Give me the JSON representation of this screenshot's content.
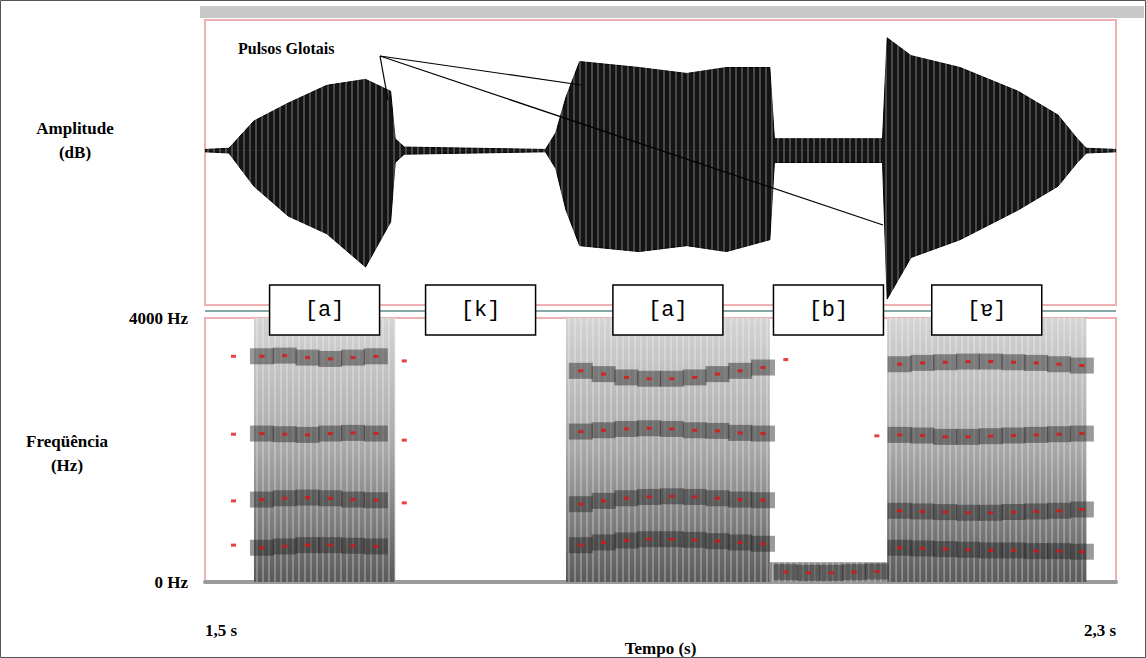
{
  "chart_data": {
    "type": "waveform_spectrogram",
    "annotation": "Pulsos Glotais",
    "x_label": "Tempo (s)",
    "xlim": [
      1.5,
      2.3
    ],
    "xticks": [
      {
        "value": 1.5,
        "label": "1,5 s"
      },
      {
        "value": 2.3,
        "label": "2,3 s"
      }
    ],
    "segments": [
      {
        "label": "[a]",
        "start": 1.543,
        "end": 1.667
      },
      {
        "label": "[k]",
        "start": 1.667,
        "end": 1.817
      },
      {
        "label": "[a]",
        "start": 1.817,
        "end": 1.996
      },
      {
        "label": "[b]",
        "start": 1.996,
        "end": 2.099
      },
      {
        "label": "[ɐ]",
        "start": 2.099,
        "end": 2.274
      }
    ],
    "waveform": {
      "y_label": "Amplitude (dB)",
      "ylim": [
        -1.3,
        1.1
      ],
      "color": "#000000",
      "t": [
        1.5,
        1.521,
        1.543,
        1.573,
        1.607,
        1.641,
        1.663,
        1.667,
        1.675,
        1.799,
        1.808,
        1.817,
        1.829,
        1.881,
        1.923,
        1.958,
        1.996,
        2.0,
        2.095,
        2.099,
        2.12,
        2.163,
        2.214,
        2.249,
        2.266,
        2.274,
        2.3
      ],
      "max": [
        0.01,
        0.02,
        0.25,
        0.4,
        0.55,
        0.6,
        0.5,
        0.1,
        0.03,
        0.01,
        0.15,
        0.45,
        0.75,
        0.7,
        0.65,
        0.7,
        0.7,
        0.1,
        0.1,
        0.95,
        0.8,
        0.7,
        0.5,
        0.3,
        0.1,
        0.02,
        0.01
      ],
      "min": [
        -0.01,
        -0.02,
        -0.3,
        -0.55,
        -0.7,
        -0.98,
        -0.6,
        -0.1,
        -0.03,
        -0.01,
        -0.15,
        -0.5,
        -0.8,
        -0.85,
        -0.8,
        -0.85,
        -0.75,
        -0.1,
        -0.1,
        -1.25,
        -0.9,
        -0.75,
        -0.5,
        -0.3,
        -0.1,
        -0.02,
        -0.01
      ]
    },
    "spectrogram": {
      "y_label": "Freqüência (Hz)",
      "ylim": [
        0,
        4000
      ],
      "yticks": [
        {
          "value": 0,
          "label": "0 Hz"
        },
        {
          "value": 4000,
          "label": "4000 Hz"
        }
      ],
      "dark_regions": [
        [
          1.543,
          1.667,
          0,
          4000
        ],
        [
          1.817,
          1.996,
          0,
          4000
        ],
        [
          1.996,
          2.099,
          0,
          300
        ],
        [
          2.099,
          2.274,
          0,
          4000
        ]
      ],
      "formants": {
        "color": "#e01010",
        "points": [
          [
            1.525,
            560
          ],
          [
            1.525,
            1230
          ],
          [
            1.525,
            2240
          ],
          [
            1.525,
            3420
          ],
          [
            1.55,
            520
          ],
          [
            1.57,
            540
          ],
          [
            1.59,
            560
          ],
          [
            1.61,
            560
          ],
          [
            1.63,
            550
          ],
          [
            1.65,
            540
          ],
          [
            1.55,
            1250
          ],
          [
            1.57,
            1270
          ],
          [
            1.59,
            1280
          ],
          [
            1.61,
            1270
          ],
          [
            1.63,
            1250
          ],
          [
            1.65,
            1240
          ],
          [
            1.55,
            2250
          ],
          [
            1.57,
            2240
          ],
          [
            1.59,
            2230
          ],
          [
            1.61,
            2250
          ],
          [
            1.63,
            2260
          ],
          [
            1.65,
            2250
          ],
          [
            1.55,
            3420
          ],
          [
            1.57,
            3430
          ],
          [
            1.59,
            3400
          ],
          [
            1.61,
            3380
          ],
          [
            1.63,
            3400
          ],
          [
            1.65,
            3420
          ],
          [
            1.675,
            1200
          ],
          [
            1.675,
            2150
          ],
          [
            1.675,
            3350
          ],
          [
            1.83,
            560
          ],
          [
            1.85,
            600
          ],
          [
            1.87,
            630
          ],
          [
            1.89,
            650
          ],
          [
            1.91,
            650
          ],
          [
            1.93,
            640
          ],
          [
            1.95,
            620
          ],
          [
            1.97,
            600
          ],
          [
            1.99,
            580
          ],
          [
            1.83,
            1180
          ],
          [
            1.85,
            1230
          ],
          [
            1.87,
            1270
          ],
          [
            1.89,
            1290
          ],
          [
            1.91,
            1300
          ],
          [
            1.93,
            1290
          ],
          [
            1.95,
            1270
          ],
          [
            1.97,
            1250
          ],
          [
            1.99,
            1240
          ],
          [
            1.83,
            2280
          ],
          [
            1.85,
            2300
          ],
          [
            1.87,
            2320
          ],
          [
            1.89,
            2330
          ],
          [
            1.91,
            2320
          ],
          [
            1.93,
            2300
          ],
          [
            1.95,
            2290
          ],
          [
            1.97,
            2260
          ],
          [
            1.99,
            2250
          ],
          [
            1.83,
            3200
          ],
          [
            1.85,
            3150
          ],
          [
            1.87,
            3100
          ],
          [
            1.89,
            3080
          ],
          [
            1.91,
            3080
          ],
          [
            1.93,
            3100
          ],
          [
            1.95,
            3150
          ],
          [
            1.97,
            3200
          ],
          [
            1.99,
            3250
          ],
          [
            2.01,
            150
          ],
          [
            2.03,
            140
          ],
          [
            2.05,
            140
          ],
          [
            2.07,
            150
          ],
          [
            2.09,
            160
          ],
          [
            2.01,
            3370
          ],
          [
            2.09,
            2215
          ],
          [
            2.11,
            520
          ],
          [
            2.13,
            510
          ],
          [
            2.15,
            500
          ],
          [
            2.17,
            490
          ],
          [
            2.19,
            480
          ],
          [
            2.21,
            480
          ],
          [
            2.23,
            470
          ],
          [
            2.25,
            470
          ],
          [
            2.27,
            460
          ],
          [
            2.11,
            1080
          ],
          [
            2.13,
            1070
          ],
          [
            2.15,
            1060
          ],
          [
            2.17,
            1050
          ],
          [
            2.19,
            1050
          ],
          [
            2.21,
            1060
          ],
          [
            2.23,
            1070
          ],
          [
            2.25,
            1080
          ],
          [
            2.27,
            1100
          ],
          [
            2.11,
            2230
          ],
          [
            2.13,
            2220
          ],
          [
            2.15,
            2200
          ],
          [
            2.17,
            2200
          ],
          [
            2.19,
            2210
          ],
          [
            2.21,
            2220
          ],
          [
            2.23,
            2230
          ],
          [
            2.25,
            2240
          ],
          [
            2.27,
            2250
          ],
          [
            2.11,
            3300
          ],
          [
            2.13,
            3320
          ],
          [
            2.15,
            3330
          ],
          [
            2.17,
            3340
          ],
          [
            2.19,
            3340
          ],
          [
            2.21,
            3330
          ],
          [
            2.23,
            3320
          ],
          [
            2.25,
            3300
          ],
          [
            2.27,
            3280
          ]
        ]
      }
    }
  }
}
